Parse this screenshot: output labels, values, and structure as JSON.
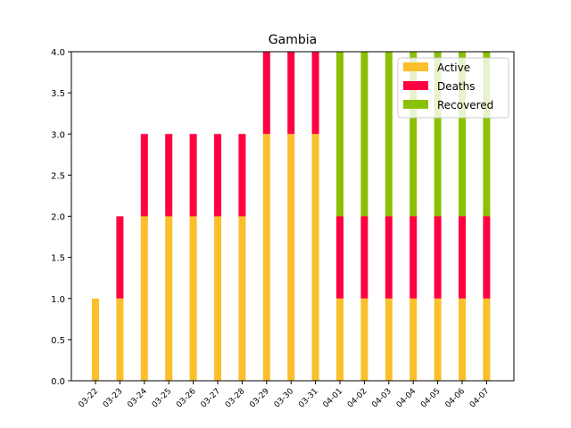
{
  "chart_data": {
    "type": "bar",
    "stacked": true,
    "title": "Gambia",
    "xlabel": "",
    "ylabel": "",
    "ylim": [
      0,
      4.0
    ],
    "yticks": [
      "0.0",
      "0.5",
      "1.0",
      "1.5",
      "2.0",
      "2.5",
      "3.0",
      "3.5",
      "4.0"
    ],
    "grid": false,
    "legend_position": "top-right",
    "categories": [
      "03-22",
      "03-23",
      "03-24",
      "03-25",
      "03-26",
      "03-27",
      "03-28",
      "03-29",
      "03-30",
      "03-31",
      "04-01",
      "04-02",
      "04-03",
      "04-04",
      "04-05",
      "04-06",
      "04-07"
    ],
    "series": [
      {
        "name": "Active",
        "color": "#fbbf2c",
        "values": [
          1,
          1,
          2,
          2,
          2,
          2,
          2,
          3,
          3,
          3,
          1,
          1,
          1,
          1,
          1,
          1,
          1
        ]
      },
      {
        "name": "Deaths",
        "color": "#ff0040",
        "values": [
          0,
          1,
          1,
          1,
          1,
          1,
          1,
          1,
          1,
          1,
          1,
          1,
          1,
          1,
          1,
          1,
          1
        ]
      },
      {
        "name": "Recovered",
        "color": "#8ac107",
        "values": [
          0,
          0,
          0,
          0,
          0,
          0,
          0,
          0,
          0,
          0,
          2,
          2,
          2,
          2,
          2,
          2,
          2
        ]
      }
    ]
  }
}
